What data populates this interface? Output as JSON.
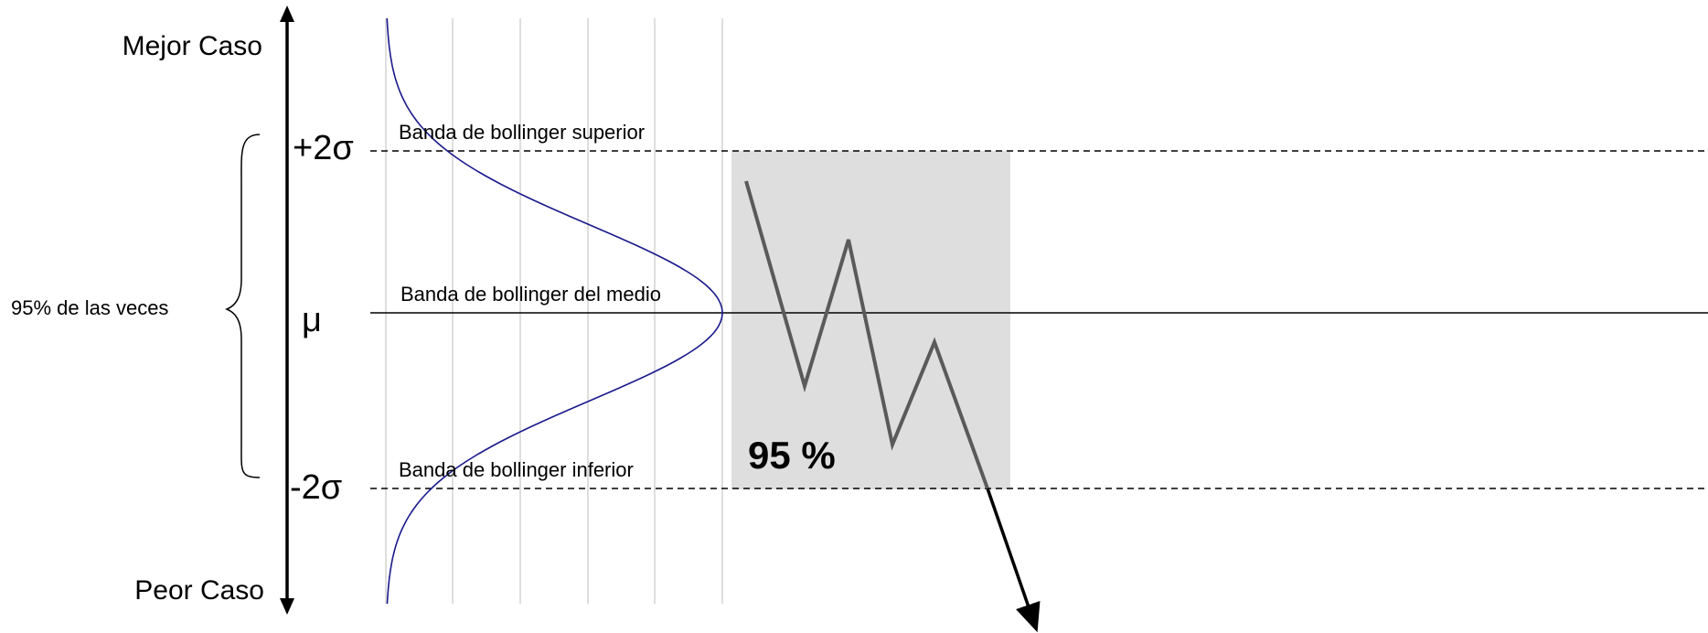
{
  "axis": {
    "top_label": "Mejor Caso",
    "bottom_label": "Peor Caso"
  },
  "bands": {
    "upper_symbol": "+2σ",
    "upper_label": "Banda de bollinger superior",
    "middle_symbol": "μ",
    "middle_label": "Banda de bollinger del medio",
    "lower_symbol": "-2σ",
    "lower_label": "Banda de bollinger inferior"
  },
  "brace_label": "95% de las veces",
  "region_label": "95 %",
  "colors": {
    "curve": "#1a1a8c",
    "price_line": "#5a5a5a",
    "region": "#dedede",
    "grid": "#c8c8c8",
    "axis": "#000000"
  }
}
